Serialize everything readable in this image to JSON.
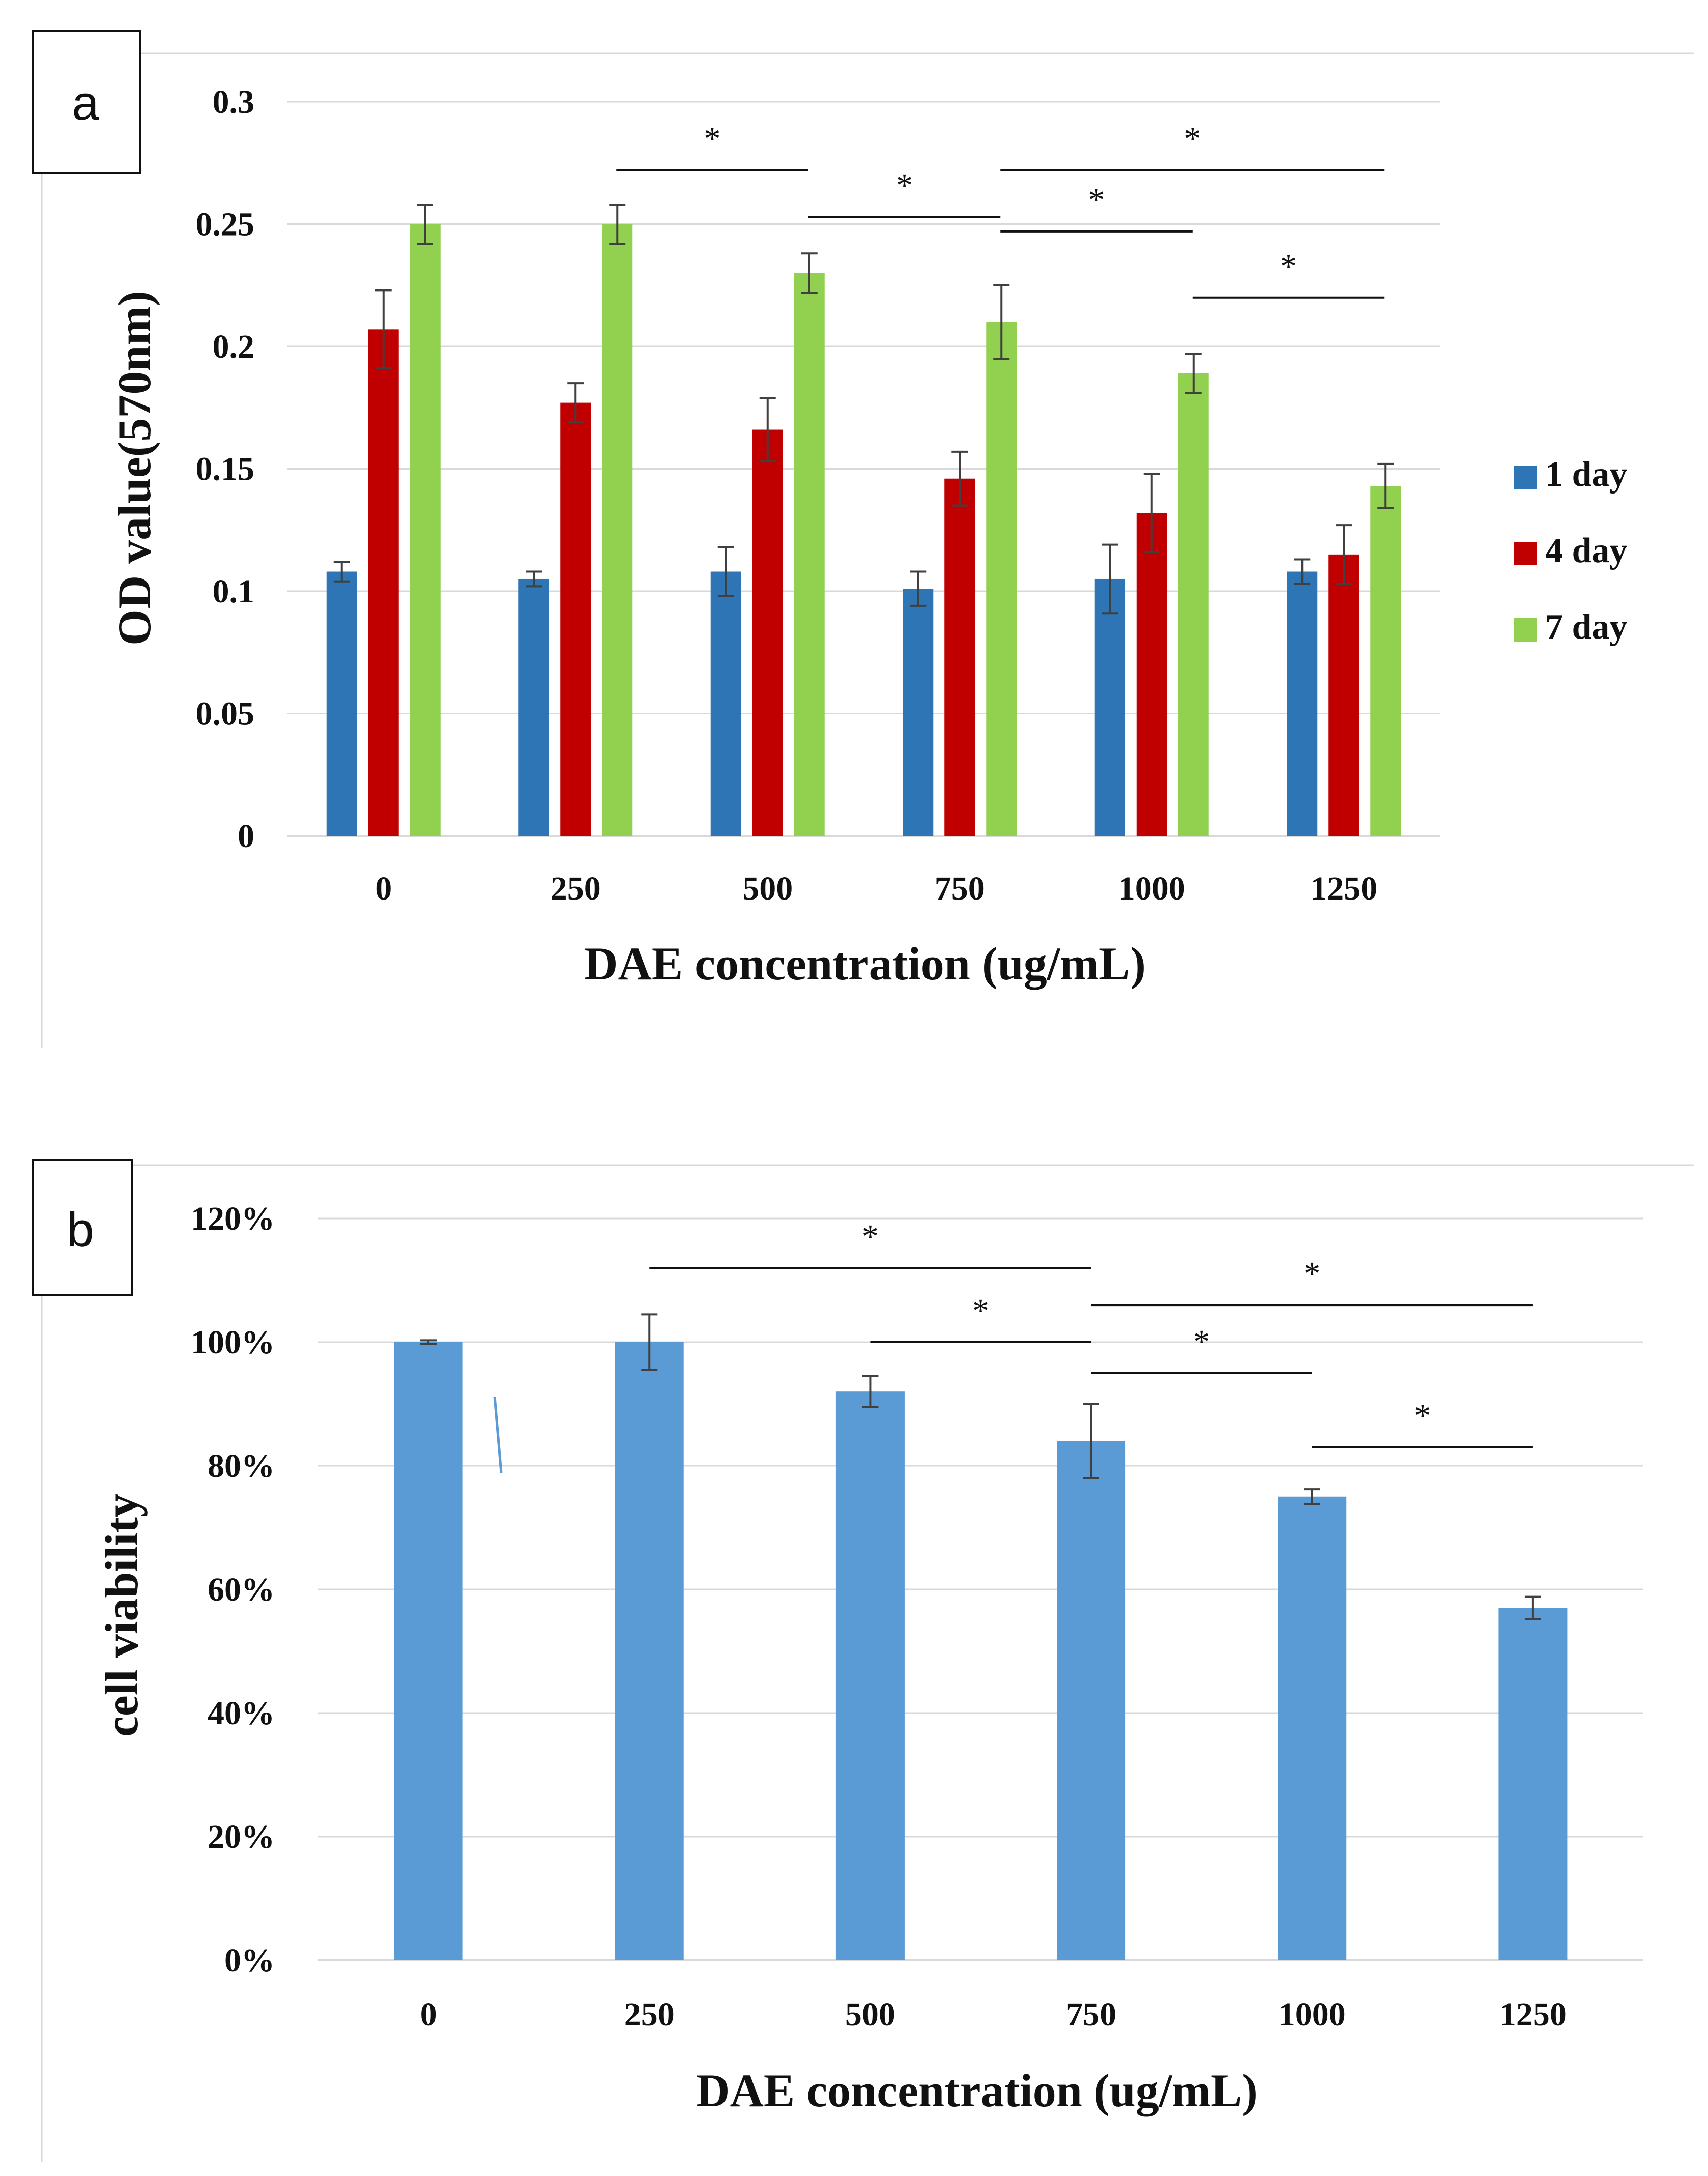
{
  "chart_data": [
    {
      "type": "bar",
      "panel_label": "a",
      "title": "",
      "xlabel": "DAE concentration (ug/mL)",
      "ylabel": "OD value(570nm)",
      "ylim": [
        0,
        0.3
      ],
      "yticks": [
        "0",
        "0.05",
        "0.1",
        "0.15",
        "0.2",
        "0.25",
        "0.3"
      ],
      "categories": [
        "0",
        "250",
        "500",
        "750",
        "1000",
        "1250"
      ],
      "legend_position": "right",
      "grid": true,
      "series": [
        {
          "name": "1 day",
          "color": "#2e75b6",
          "values": [
            0.108,
            0.105,
            0.108,
            0.101,
            0.105,
            0.108
          ],
          "errors": [
            0.004,
            0.003,
            0.01,
            0.007,
            0.014,
            0.005
          ]
        },
        {
          "name": "4 day",
          "color": "#c00000",
          "values": [
            0.207,
            0.177,
            0.166,
            0.146,
            0.132,
            0.115
          ],
          "errors": [
            0.016,
            0.008,
            0.013,
            0.011,
            0.016,
            0.012
          ]
        },
        {
          "name": "7 day",
          "color": "#92d050",
          "values": [
            0.25,
            0.25,
            0.23,
            0.21,
            0.189,
            0.143
          ],
          "errors": [
            0.008,
            0.008,
            0.008,
            0.015,
            0.008,
            0.009
          ]
        }
      ],
      "significance": [
        {
          "from": 1,
          "to": 2,
          "level": 0.272,
          "label": "*"
        },
        {
          "from": 2,
          "to": 3,
          "level": 0.253,
          "label": "*"
        },
        {
          "from": 3,
          "to": 5,
          "level": 0.272,
          "label": "*"
        },
        {
          "from": 3,
          "to": 4,
          "level": 0.247,
          "label": "*"
        },
        {
          "from": 4,
          "to": 5,
          "level": 0.22,
          "label": "*"
        }
      ]
    },
    {
      "type": "bar",
      "panel_label": "b",
      "title": "",
      "xlabel": "DAE concentration (ug/mL)",
      "ylabel": "cell viability",
      "ylim": [
        0,
        120
      ],
      "yticks": [
        "0%",
        "20%",
        "40%",
        "60%",
        "80%",
        "100%",
        "120%"
      ],
      "categories": [
        "0",
        "250",
        "500",
        "750",
        "1000",
        "1250"
      ],
      "grid": true,
      "series": [
        {
          "name": "cell viability",
          "color": "#5b9bd5",
          "values": [
            100,
            100,
            92,
            84,
            75,
            57
          ],
          "errors": [
            0.3,
            4.5,
            2.5,
            6,
            1.2,
            1.8
          ]
        }
      ],
      "significance": [
        {
          "from": 1,
          "to": 3,
          "level": 112,
          "label": "*"
        },
        {
          "from": 2,
          "to": 3,
          "level": 100,
          "label": "*"
        },
        {
          "from": 3,
          "to": 5,
          "level": 106,
          "label": "*"
        },
        {
          "from": 3,
          "to": 4,
          "level": 95,
          "label": "*"
        },
        {
          "from": 4,
          "to": 5,
          "level": 83,
          "label": "*"
        }
      ]
    }
  ]
}
